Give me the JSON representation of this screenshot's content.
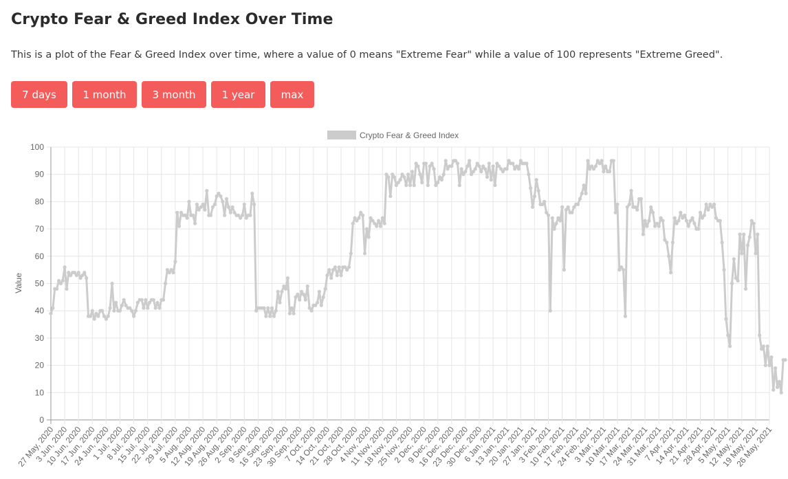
{
  "header": {
    "title": "Crypto Fear & Greed Index Over Time",
    "description": "This is a plot of the Fear & Greed Index over time, where a value of 0 means \"Extreme Fear\" while a value of 100 represents \"Extreme Greed\"."
  },
  "range_buttons": [
    {
      "label": "7 days"
    },
    {
      "label": "1 month"
    },
    {
      "label": "3 month"
    },
    {
      "label": "1 year"
    },
    {
      "label": "max"
    }
  ],
  "colors": {
    "button_bg": "#f45b5b",
    "line": "#cccccc",
    "grid": "#e6e6e6",
    "axis_text": "#666666"
  },
  "chart_data": {
    "type": "line",
    "title": "",
    "legend": [
      "Crypto Fear & Greed Index"
    ],
    "legend_position": "top",
    "xlabel": "",
    "ylabel": "Value",
    "ylim": [
      0,
      100
    ],
    "yticks": [
      0,
      10,
      20,
      30,
      40,
      50,
      60,
      70,
      80,
      90,
      100
    ],
    "grid": true,
    "start_date": "27 May, 2020",
    "end_date": "27 May, 2021",
    "x_tick_labels": [
      "27 May, 2020",
      "3 Jun, 2020",
      "10 Jun, 2020",
      "17 Jun, 2020",
      "24 Jun, 2020",
      "1 Jul, 2020",
      "8 Jul, 2020",
      "15 Jul, 2020",
      "22 Jul, 2020",
      "29 Jul, 2020",
      "5 Aug, 2020",
      "12 Aug, 2020",
      "19 Aug, 2020",
      "26 Aug, 2020",
      "2 Sep, 2020",
      "9 Sep, 2020",
      "16 Sep, 2020",
      "23 Sep, 2020",
      "30 Sep, 2020",
      "7 Oct, 2020",
      "14 Oct, 2020",
      "21 Oct, 2020",
      "28 Oct, 2020",
      "4 Nov, 2020",
      "11 Nov, 2020",
      "18 Nov, 2020",
      "25 Nov, 2020",
      "2 Dec, 2020",
      "9 Dec, 2020",
      "16 Dec, 2020",
      "23 Dec, 2020",
      "30 Dec, 2020",
      "6 Jan, 2021",
      "13 Jan, 2021",
      "20 Jan, 2021",
      "27 Jan, 2021",
      "3 Feb, 2021",
      "10 Feb, 2021",
      "17 Feb, 2021",
      "24 Feb, 2021",
      "3 Mar, 2021",
      "10 Mar, 2021",
      "17 Mar, 2021",
      "24 Mar, 2021",
      "31 Mar, 2021",
      "7 Apr, 2021",
      "14 Apr, 2021",
      "21 Apr, 2021",
      "28 Apr, 2021",
      "5 May, 2021",
      "12 May, 2021",
      "19 May, 2021",
      "26 May, 2021"
    ],
    "series": [
      {
        "name": "Crypto Fear & Greed Index",
        "color": "#cccccc",
        "values": [
          39,
          41,
          48,
          48,
          51,
          50,
          51,
          56,
          48,
          54,
          53,
          54,
          54,
          53,
          54,
          52,
          53,
          54,
          52,
          38,
          38,
          40,
          37,
          39,
          38,
          40,
          40,
          38,
          37,
          38,
          41,
          50,
          40,
          43,
          40,
          40,
          42,
          44,
          42,
          41,
          41,
          40,
          38,
          40,
          43,
          44,
          44,
          41,
          44,
          41,
          43,
          44,
          44,
          41,
          43,
          41,
          44,
          44,
          50,
          55,
          54,
          55,
          54,
          58,
          76,
          71,
          76,
          75,
          75,
          74,
          80,
          75,
          75,
          72,
          79,
          77,
          78,
          79,
          77,
          84,
          75,
          75,
          78,
          79,
          82,
          83,
          82,
          80,
          75,
          81,
          78,
          76,
          78,
          76,
          75,
          75,
          74,
          75,
          79,
          74,
          75,
          75,
          83,
          79,
          40,
          41,
          41,
          41,
          41,
          38,
          41,
          38,
          41,
          38,
          40,
          47,
          43,
          47,
          49,
          48,
          52,
          39,
          41,
          39,
          45,
          46,
          44,
          47,
          46,
          44,
          49,
          41,
          40,
          42,
          42,
          43,
          47,
          42,
          45,
          48,
          53,
          55,
          52,
          55,
          56,
          53,
          56,
          53,
          56,
          56,
          55,
          56,
          61,
          72,
          74,
          73,
          74,
          76,
          75,
          61,
          70,
          67,
          74,
          73,
          72,
          71,
          73,
          71,
          74,
          72,
          90,
          89,
          82,
          90,
          89,
          86,
          87,
          88,
          90,
          89,
          86,
          90,
          86,
          91,
          86,
          94,
          93,
          90,
          87,
          94,
          94,
          86,
          93,
          94,
          92,
          86,
          87,
          89,
          88,
          90,
          95,
          92,
          93,
          93,
          95,
          95,
          94,
          86,
          92,
          90,
          91,
          93,
          95,
          90,
          91,
          92,
          94,
          93,
          91,
          93,
          92,
          89,
          94,
          88,
          93,
          86,
          94,
          93,
          92,
          91,
          92,
          92,
          95,
          94,
          94,
          92,
          93,
          92,
          95,
          94,
          94,
          94,
          90,
          85,
          78,
          82,
          88,
          84,
          79,
          79,
          80,
          76,
          75,
          40,
          74,
          70,
          72,
          74,
          73,
          78,
          55,
          77,
          78,
          76,
          76,
          78,
          79,
          79,
          81,
          83,
          86,
          83,
          95,
          92,
          93,
          92,
          93,
          95,
          94,
          95,
          91,
          93,
          91,
          91,
          95,
          95,
          76,
          79,
          55,
          56,
          55,
          38,
          78,
          79,
          84,
          78,
          78,
          77,
          81,
          81,
          68,
          73,
          71,
          73,
          78,
          76,
          71,
          72,
          71,
          74,
          73,
          66,
          65,
          60,
          54,
          65,
          74,
          72,
          73,
          76,
          74,
          75,
          73,
          71,
          73,
          74,
          72,
          70,
          70,
          76,
          74,
          75,
          79,
          77,
          79,
          78,
          79,
          74,
          73,
          73,
          65,
          55,
          37,
          31,
          27,
          50,
          59,
          52,
          51,
          68,
          61,
          68,
          48,
          64,
          67,
          73,
          72,
          61,
          68,
          31,
          26,
          27,
          20,
          27,
          20,
          23,
          11,
          19,
          12,
          14,
          10,
          22,
          22
        ]
      }
    ]
  }
}
